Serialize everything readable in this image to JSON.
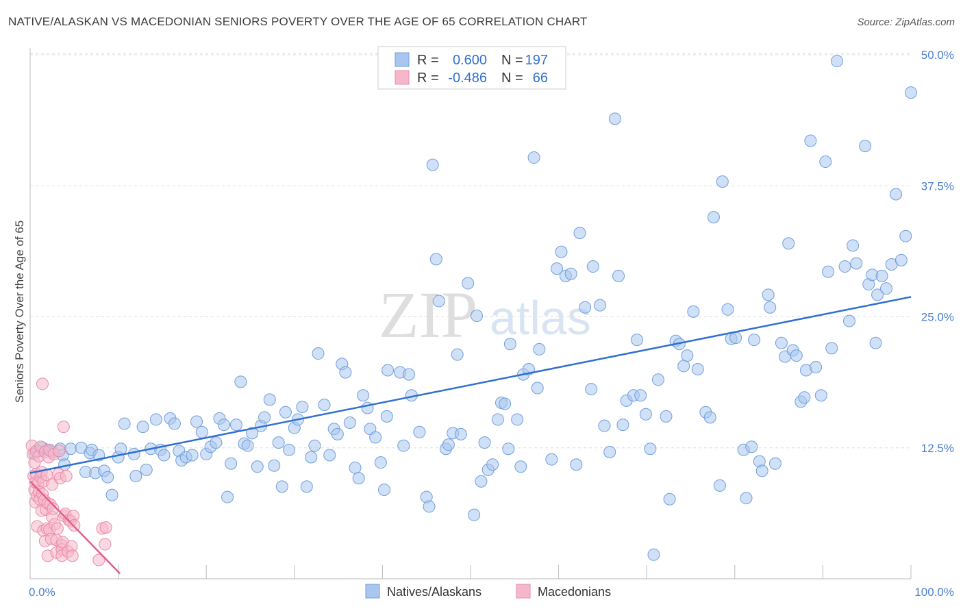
{
  "header": {
    "title": "NATIVE/ALASKAN VS MACEDONIAN SENIORS POVERTY OVER THE AGE OF 65 CORRELATION CHART",
    "source": "Source: ZipAtlas.com"
  },
  "watermark": {
    "zip": "ZIP",
    "atlas": "atlas"
  },
  "colors": {
    "blue_fill": "#a9c6ee",
    "blue_stroke": "#6f9fdc",
    "blue_line": "#2f6fcf",
    "pink_fill": "#f5b8cb",
    "pink_stroke": "#ea8aa9",
    "pink_line": "#e0608c",
    "grid": "#dddddd",
    "tick_text": "#4a7fd0"
  },
  "legend": {
    "rows": [
      {
        "r_label": "R =",
        "r_value": "0.600",
        "n_label": "N =",
        "n_value": "197"
      },
      {
        "r_label": "R =",
        "r_value": "-0.486",
        "n_label": "N =",
        "n_value": "66"
      }
    ]
  },
  "bottom_legend": [
    "Natives/Alaskans",
    "Macedonians"
  ],
  "chart_data": {
    "type": "scatter",
    "title": "NATIVE/ALASKAN VS MACEDONIAN SENIORS POVERTY OVER THE AGE OF 65 CORRELATION CHART",
    "xlabel": "",
    "ylabel": "Seniors Poverty Over the Age of 65",
    "xlim": [
      0,
      100
    ],
    "ylim": [
      0,
      50
    ],
    "x_tick_labels": [
      {
        "value": 0,
        "label": "0.0%"
      },
      {
        "value": 100,
        "label": "100.0%"
      }
    ],
    "y_tick_labels": [
      {
        "value": 12.5,
        "label": "12.5%"
      },
      {
        "value": 25.0,
        "label": "25.0%"
      },
      {
        "value": 37.5,
        "label": "37.5%"
      },
      {
        "value": 50.0,
        "label": "50.0%"
      }
    ],
    "series": [
      {
        "name": "Natives/Alaskans",
        "color": "#a9c6ee",
        "R": 0.6,
        "N": 197,
        "trend": {
          "x": [
            0,
            100
          ],
          "y": [
            10.1,
            26.9
          ]
        },
        "points": [
          [
            0.5,
            12.0
          ],
          [
            0.9,
            12.2
          ],
          [
            1.4,
            12.5
          ],
          [
            1.9,
            12.3
          ],
          [
            2.3,
            12.2
          ],
          [
            2.6,
            12.1
          ],
          [
            3.4,
            12.4
          ],
          [
            3.7,
            11.8
          ],
          [
            3.9,
            10.9
          ],
          [
            4.6,
            12.4
          ],
          [
            5.8,
            12.5
          ],
          [
            6.3,
            10.2
          ],
          [
            6.8,
            12.0
          ],
          [
            7.0,
            12.3
          ],
          [
            7.4,
            10.1
          ],
          [
            7.8,
            11.8
          ],
          [
            8.4,
            10.3
          ],
          [
            8.8,
            9.7
          ],
          [
            9.3,
            8.0
          ],
          [
            10.0,
            11.6
          ],
          [
            10.3,
            12.4
          ],
          [
            10.7,
            14.8
          ],
          [
            11.8,
            11.9
          ],
          [
            12.0,
            9.8
          ],
          [
            12.8,
            14.5
          ],
          [
            13.2,
            10.4
          ],
          [
            13.7,
            12.4
          ],
          [
            14.3,
            15.2
          ],
          [
            14.8,
            12.3
          ],
          [
            15.2,
            11.8
          ],
          [
            15.9,
            15.3
          ],
          [
            16.4,
            14.8
          ],
          [
            16.9,
            12.2
          ],
          [
            17.2,
            11.3
          ],
          [
            17.7,
            11.6
          ],
          [
            18.4,
            11.8
          ],
          [
            18.9,
            15.0
          ],
          [
            19.5,
            14.0
          ],
          [
            20.0,
            11.9
          ],
          [
            20.5,
            12.6
          ],
          [
            21.1,
            13.0
          ],
          [
            21.5,
            15.3
          ],
          [
            22.0,
            14.7
          ],
          [
            22.4,
            7.8
          ],
          [
            22.8,
            11.0
          ],
          [
            23.4,
            14.7
          ],
          [
            23.9,
            18.8
          ],
          [
            24.3,
            12.9
          ],
          [
            24.7,
            12.7
          ],
          [
            25.2,
            13.9
          ],
          [
            25.8,
            10.7
          ],
          [
            26.2,
            14.6
          ],
          [
            26.6,
            15.4
          ],
          [
            27.2,
            17.1
          ],
          [
            27.7,
            10.8
          ],
          [
            28.2,
            13.0
          ],
          [
            28.6,
            8.8
          ],
          [
            29.0,
            15.9
          ],
          [
            29.4,
            12.3
          ],
          [
            30.0,
            14.4
          ],
          [
            30.4,
            15.2
          ],
          [
            30.9,
            16.4
          ],
          [
            31.4,
            8.8
          ],
          [
            31.9,
            11.6
          ],
          [
            32.3,
            12.7
          ],
          [
            32.7,
            21.5
          ],
          [
            33.4,
            16.6
          ],
          [
            34.0,
            11.8
          ],
          [
            34.5,
            14.3
          ],
          [
            34.9,
            13.8
          ],
          [
            35.4,
            20.5
          ],
          [
            35.8,
            19.7
          ],
          [
            36.3,
            14.9
          ],
          [
            36.9,
            10.6
          ],
          [
            37.3,
            9.6
          ],
          [
            37.8,
            17.5
          ],
          [
            38.3,
            16.3
          ],
          [
            38.6,
            14.3
          ],
          [
            39.2,
            13.5
          ],
          [
            39.8,
            11.1
          ],
          [
            40.2,
            8.5
          ],
          [
            40.5,
            15.5
          ],
          [
            40.6,
            19.9
          ],
          [
            42.0,
            19.7
          ],
          [
            42.4,
            12.7
          ],
          [
            43.0,
            19.5
          ],
          [
            43.3,
            17.5
          ],
          [
            44.2,
            14.0
          ],
          [
            45.0,
            7.8
          ],
          [
            45.3,
            6.9
          ],
          [
            45.7,
            39.5
          ],
          [
            46.1,
            30.5
          ],
          [
            46.4,
            26.5
          ],
          [
            47.2,
            12.4
          ],
          [
            47.5,
            12.8
          ],
          [
            48.0,
            13.9
          ],
          [
            48.5,
            21.4
          ],
          [
            48.9,
            13.8
          ],
          [
            49.7,
            28.2
          ],
          [
            50.4,
            6.1
          ],
          [
            50.7,
            25.1
          ],
          [
            51.2,
            9.3
          ],
          [
            51.6,
            13.0
          ],
          [
            52.0,
            10.4
          ],
          [
            52.5,
            10.9
          ],
          [
            53.1,
            15.2
          ],
          [
            53.5,
            16.8
          ],
          [
            53.9,
            16.7
          ],
          [
            54.3,
            12.4
          ],
          [
            54.5,
            22.4
          ],
          [
            55.3,
            15.2
          ],
          [
            55.7,
            10.7
          ],
          [
            56.0,
            19.5
          ],
          [
            56.6,
            20.0
          ],
          [
            57.2,
            40.2
          ],
          [
            57.6,
            18.2
          ],
          [
            57.8,
            21.9
          ],
          [
            59.2,
            11.4
          ],
          [
            59.8,
            29.6
          ],
          [
            60.3,
            31.2
          ],
          [
            60.8,
            28.9
          ],
          [
            61.4,
            29.1
          ],
          [
            62.0,
            10.9
          ],
          [
            62.4,
            33.0
          ],
          [
            63.0,
            25.9
          ],
          [
            63.7,
            18.1
          ],
          [
            63.9,
            29.8
          ],
          [
            64.7,
            26.1
          ],
          [
            65.2,
            14.6
          ],
          [
            65.8,
            12.1
          ],
          [
            66.4,
            43.9
          ],
          [
            66.8,
            28.9
          ],
          [
            67.3,
            14.7
          ],
          [
            67.7,
            17.0
          ],
          [
            68.5,
            17.5
          ],
          [
            68.9,
            22.8
          ],
          [
            69.3,
            17.5
          ],
          [
            69.9,
            15.7
          ],
          [
            70.4,
            12.4
          ],
          [
            70.8,
            2.3
          ],
          [
            71.3,
            19.0
          ],
          [
            72.2,
            15.5
          ],
          [
            72.6,
            7.6
          ],
          [
            73.3,
            22.7
          ],
          [
            73.7,
            22.4
          ],
          [
            74.2,
            20.3
          ],
          [
            74.6,
            21.3
          ],
          [
            75.3,
            25.5
          ],
          [
            75.8,
            20.0
          ],
          [
            76.7,
            15.9
          ],
          [
            77.2,
            15.4
          ],
          [
            77.6,
            34.5
          ],
          [
            78.3,
            8.9
          ],
          [
            78.6,
            37.9
          ],
          [
            79.2,
            25.7
          ],
          [
            79.6,
            22.9
          ],
          [
            80.1,
            23.0
          ],
          [
            81.0,
            12.3
          ],
          [
            81.3,
            7.7
          ],
          [
            81.9,
            12.6
          ],
          [
            82.2,
            22.8
          ],
          [
            82.8,
            11.2
          ],
          [
            83.1,
            10.3
          ],
          [
            83.8,
            27.1
          ],
          [
            84.0,
            25.9
          ],
          [
            84.6,
            11.0
          ],
          [
            85.3,
            22.5
          ],
          [
            85.7,
            21.2
          ],
          [
            86.1,
            32.0
          ],
          [
            86.6,
            21.8
          ],
          [
            87.0,
            21.3
          ],
          [
            87.5,
            16.9
          ],
          [
            87.9,
            17.3
          ],
          [
            88.1,
            19.9
          ],
          [
            88.6,
            41.8
          ],
          [
            89.2,
            20.2
          ],
          [
            89.8,
            17.5
          ],
          [
            90.3,
            39.8
          ],
          [
            90.6,
            29.3
          ],
          [
            91.0,
            22.0
          ],
          [
            91.6,
            49.4
          ],
          [
            92.5,
            29.8
          ],
          [
            93.0,
            24.6
          ],
          [
            93.4,
            31.8
          ],
          [
            93.8,
            30.1
          ],
          [
            94.8,
            41.3
          ],
          [
            95.2,
            28.1
          ],
          [
            95.6,
            29.0
          ],
          [
            96.0,
            22.5
          ],
          [
            96.2,
            27.1
          ],
          [
            96.7,
            28.9
          ],
          [
            97.2,
            27.7
          ],
          [
            97.8,
            30.0
          ],
          [
            98.3,
            36.7
          ],
          [
            98.9,
            30.4
          ],
          [
            99.4,
            32.7
          ],
          [
            100.0,
            46.4
          ]
        ]
      },
      {
        "name": "Macedonians",
        "color": "#f5b8cb",
        "R": -0.486,
        "N": 66,
        "trend": {
          "x": [
            0,
            10.2
          ],
          "y": [
            9.3,
            0.5
          ]
        },
        "points": [
          [
            0.2,
            12.7
          ],
          [
            0.3,
            11.9
          ],
          [
            0.4,
            9.8
          ],
          [
            0.5,
            11.1
          ],
          [
            0.5,
            8.5
          ],
          [
            0.6,
            7.3
          ],
          [
            0.6,
            9.2
          ],
          [
            0.7,
            12.2
          ],
          [
            0.7,
            10.0
          ],
          [
            0.8,
            7.9
          ],
          [
            0.8,
            5.0
          ],
          [
            0.9,
            9.1
          ],
          [
            1.0,
            11.7
          ],
          [
            1.0,
            8.3
          ],
          [
            1.1,
            7.6
          ],
          [
            1.2,
            12.6
          ],
          [
            1.2,
            9.7
          ],
          [
            1.3,
            6.5
          ],
          [
            1.3,
            10.2
          ],
          [
            1.4,
            8.1
          ],
          [
            1.4,
            18.6
          ],
          [
            1.5,
            4.6
          ],
          [
            1.5,
            9.3
          ],
          [
            1.6,
            7.5
          ],
          [
            1.7,
            3.6
          ],
          [
            1.7,
            12.1
          ],
          [
            1.8,
            6.6
          ],
          [
            1.9,
            4.8
          ],
          [
            1.9,
            9.9
          ],
          [
            2.0,
            7.2
          ],
          [
            2.0,
            2.2
          ],
          [
            2.1,
            11.6
          ],
          [
            2.2,
            4.7
          ],
          [
            2.2,
            12.3
          ],
          [
            2.3,
            7.1
          ],
          [
            2.4,
            3.8
          ],
          [
            2.5,
            5.9
          ],
          [
            2.5,
            9.0
          ],
          [
            2.6,
            6.7
          ],
          [
            2.7,
            11.9
          ],
          [
            2.8,
            5.2
          ],
          [
            3.0,
            2.5
          ],
          [
            3.0,
            3.7
          ],
          [
            3.1,
            4.8
          ],
          [
            3.2,
            10.0
          ],
          [
            3.3,
            12.2
          ],
          [
            3.4,
            9.6
          ],
          [
            3.6,
            3.2
          ],
          [
            3.6,
            2.8
          ],
          [
            3.6,
            2.2
          ],
          [
            3.7,
            3.5
          ],
          [
            3.8,
            14.5
          ],
          [
            3.9,
            6.0
          ],
          [
            4.0,
            6.2
          ],
          [
            4.1,
            9.8
          ],
          [
            4.3,
            2.6
          ],
          [
            4.4,
            5.6
          ],
          [
            4.6,
            5.5
          ],
          [
            4.7,
            3.1
          ],
          [
            4.8,
            2.2
          ],
          [
            4.9,
            6.0
          ],
          [
            5.0,
            5.1
          ],
          [
            7.8,
            1.8
          ],
          [
            8.2,
            4.8
          ],
          [
            8.5,
            3.3
          ],
          [
            8.6,
            4.9
          ]
        ]
      }
    ]
  }
}
